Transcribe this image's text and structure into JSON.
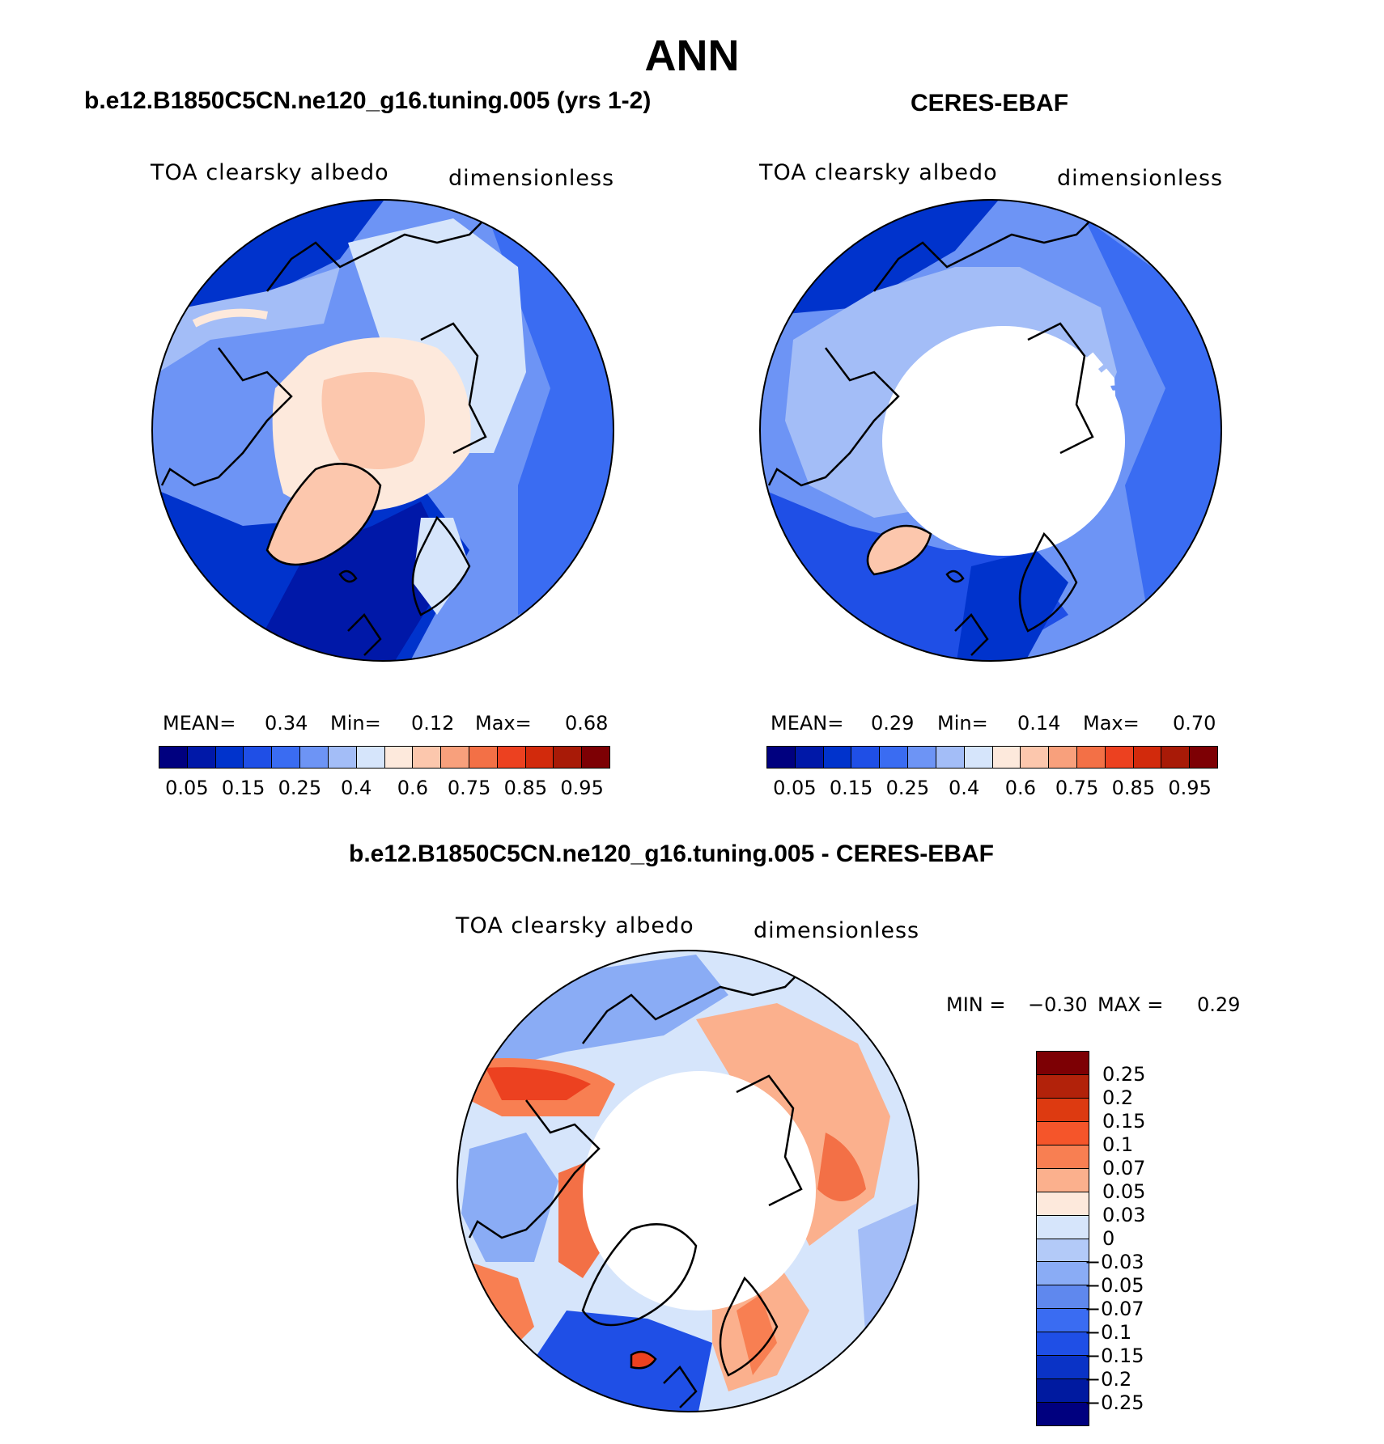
{
  "figure": {
    "season": "ANN",
    "colors": {
      "land_outline": "#000000",
      "missing": "#ffffff"
    }
  },
  "panels": [
    {
      "id": "model",
      "title": "b.e12.B1850C5CN.ne120_g16.tuning.005 (yrs 1-2)",
      "variable": "TOA clearsky albedo",
      "units": "dimensionless",
      "stats": {
        "mean_label": "MEAN=",
        "mean": "0.34",
        "min_label": "Min=",
        "min": "0.12",
        "max_label": "Max=",
        "max": "0.68"
      }
    },
    {
      "id": "obs",
      "title": "CERES-EBAF",
      "variable": "TOA clearsky albedo",
      "units": "dimensionless",
      "stats": {
        "mean_label": "MEAN=",
        "mean": "0.29",
        "min_label": "Min=",
        "min": "0.14",
        "max_label": "Max=",
        "max": "0.70"
      }
    },
    {
      "id": "diff",
      "title": "b.e12.B1850C5CN.ne120_g16.tuning.005 - CERES-EBAF",
      "variable": "TOA clearsky albedo",
      "units": "dimensionless",
      "stats": {
        "min_label": "MIN =",
        "min": "−0.30",
        "max_label": "MAX =",
        "max": "0.29"
      }
    }
  ],
  "colorbar_abs": {
    "colors": [
      "#00007f",
      "#0018a8",
      "#0033cc",
      "#1f4fe6",
      "#3a6cf2",
      "#6d94f5",
      "#a3bdf7",
      "#d6e5fb",
      "#fde9dc",
      "#fcc7ad",
      "#f8a07c",
      "#f37046",
      "#ec4120",
      "#d22a0c",
      "#a81a07",
      "#7d0004"
    ],
    "tick_labels": [
      "0.05",
      "0.15",
      "0.25",
      "0.4",
      "0.6",
      "0.75",
      "0.85",
      "0.95"
    ]
  },
  "colorbar_diff": {
    "colors": [
      "#7d0004",
      "#b2220a",
      "#dd3a11",
      "#f5552a",
      "#f87f52",
      "#fbb08d",
      "#fde9dc",
      "#d6e5fb",
      "#b3caf8",
      "#8aacf5",
      "#5f88ee",
      "#3a6cf2",
      "#1f4fe6",
      "#0a33c6",
      "#001aa0",
      "#00007f"
    ],
    "tick_labels": [
      "0.25",
      "0.2",
      "0.15",
      "0.1",
      "0.07",
      "0.05",
      "0.03",
      "0",
      "−0.03",
      "−0.05",
      "−0.07",
      "−0.1",
      "−0.15",
      "−0.2",
      "−0.25"
    ]
  },
  "chart_data": [
    {
      "type": "heatmap",
      "title": "TOA clearsky albedo",
      "projection": "north polar stereographic",
      "field_range": [
        0.12,
        0.68
      ],
      "mean": 0.34,
      "levels": [
        0.05,
        0.1,
        0.15,
        0.2,
        0.25,
        0.3,
        0.35,
        0.4,
        0.5,
        0.6,
        0.7,
        0.75,
        0.8,
        0.85,
        0.9,
        0.95
      ]
    },
    {
      "type": "heatmap",
      "title": "TOA clearsky albedo",
      "projection": "north polar stereographic",
      "field_range": [
        0.14,
        0.7
      ],
      "mean": 0.29,
      "levels": [
        0.05,
        0.1,
        0.15,
        0.2,
        0.25,
        0.3,
        0.35,
        0.4,
        0.5,
        0.6,
        0.7,
        0.75,
        0.8,
        0.85,
        0.9,
        0.95
      ]
    },
    {
      "type": "heatmap",
      "title": "TOA clearsky albedo",
      "projection": "north polar stereographic",
      "field_range": [
        -0.3,
        0.29
      ],
      "levels": [
        -0.25,
        -0.2,
        -0.15,
        -0.1,
        -0.07,
        -0.05,
        -0.03,
        0,
        0.03,
        0.05,
        0.07,
        0.1,
        0.15,
        0.2,
        0.25
      ]
    }
  ]
}
